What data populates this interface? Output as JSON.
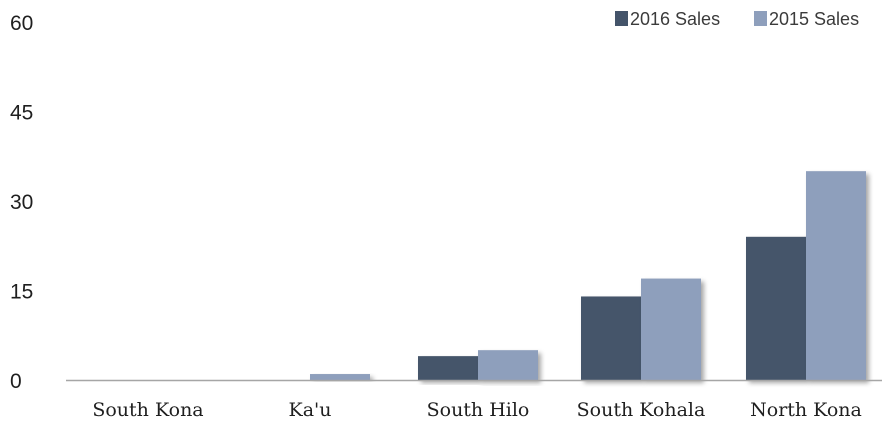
{
  "chart_data": {
    "type": "bar",
    "categories": [
      "South Kona",
      "Ka'u",
      "South Hilo",
      "South Kohala",
      "North Kona"
    ],
    "series": [
      {
        "name": "2016 Sales",
        "color": "#44546a",
        "values": [
          0,
          0,
          4,
          14,
          24
        ]
      },
      {
        "name": "2015 Sales",
        "color": "#8e9fbc",
        "values": [
          0,
          1,
          5,
          17,
          35
        ]
      }
    ],
    "yticks": [
      0,
      15,
      30,
      45,
      60
    ],
    "ylim": [
      0,
      60
    ],
    "grid": false,
    "legend_position": "top-right",
    "axis_color": "#a6a6a6"
  }
}
